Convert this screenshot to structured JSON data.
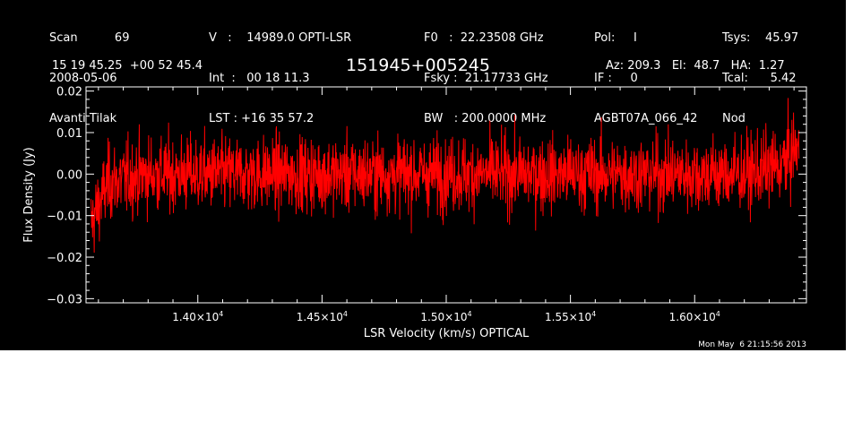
{
  "header": {
    "col1": [
      "Scan          69",
      "2008-05-06",
      "Avanti Tilak"
    ],
    "col2": [
      "V   :    14989.0 OPTI-LSR",
      "Int  :   00 18 11.3",
      "LST : +16 35 57.2"
    ],
    "col3": [
      "F0   :  22.23508 GHz",
      "Fsky :  21.17733 GHz",
      "BW   : 200.0000 MHz"
    ],
    "col4": [
      "Pol:     I",
      "IF :     0",
      "AGBT07A_066_42"
    ],
    "col5": [
      "Tsys:    45.97",
      "Tcal:      5.42",
      "Nod"
    ],
    "coords": "15 19 45.25  +00 52 45.4",
    "source": "151945+005245",
    "azelha": "Az: 209.3   El:  48.7   HA:  1.27"
  },
  "timestamp": "Mon May  6 21:15:56 2013",
  "colors": {
    "background": "#000000",
    "trace": "#ff0000",
    "axes": "#ffffff"
  },
  "chart_data": {
    "type": "line",
    "xlabel": "LSR Velocity (km/s) OPTICAL",
    "ylabel": "Flux Density (Jy)",
    "xlim": [
      13550,
      16450
    ],
    "ylim": [
      -0.031,
      0.021
    ],
    "xticks": [
      14000,
      14500,
      15000,
      15500,
      16000
    ],
    "xtick_labels": [
      {
        "mantissa": "1.40",
        "exp": "4"
      },
      {
        "mantissa": "1.45",
        "exp": "4"
      },
      {
        "mantissa": "1.50",
        "exp": "4"
      },
      {
        "mantissa": "1.55",
        "exp": "4"
      },
      {
        "mantissa": "1.60",
        "exp": "4"
      }
    ],
    "yticks": [
      0.02,
      0.01,
      0.0,
      -0.01,
      -0.02,
      -0.03
    ],
    "ytick_labels": [
      "0.02",
      "0.01",
      "0.00",
      "−0.01",
      "−0.02",
      "−0.03"
    ],
    "grid": false,
    "series": [
      {
        "x_start": 13570,
        "x_end": 16420,
        "noise_sigma_jy": 0.0045,
        "baseline": [
          [
            13570,
            -0.012
          ],
          [
            13640,
            -0.002
          ],
          [
            13800,
            0.0
          ],
          [
            15000,
            0.0
          ],
          [
            16200,
            0.0
          ],
          [
            16350,
            0.002
          ],
          [
            16420,
            0.007
          ]
        ]
      }
    ]
  }
}
